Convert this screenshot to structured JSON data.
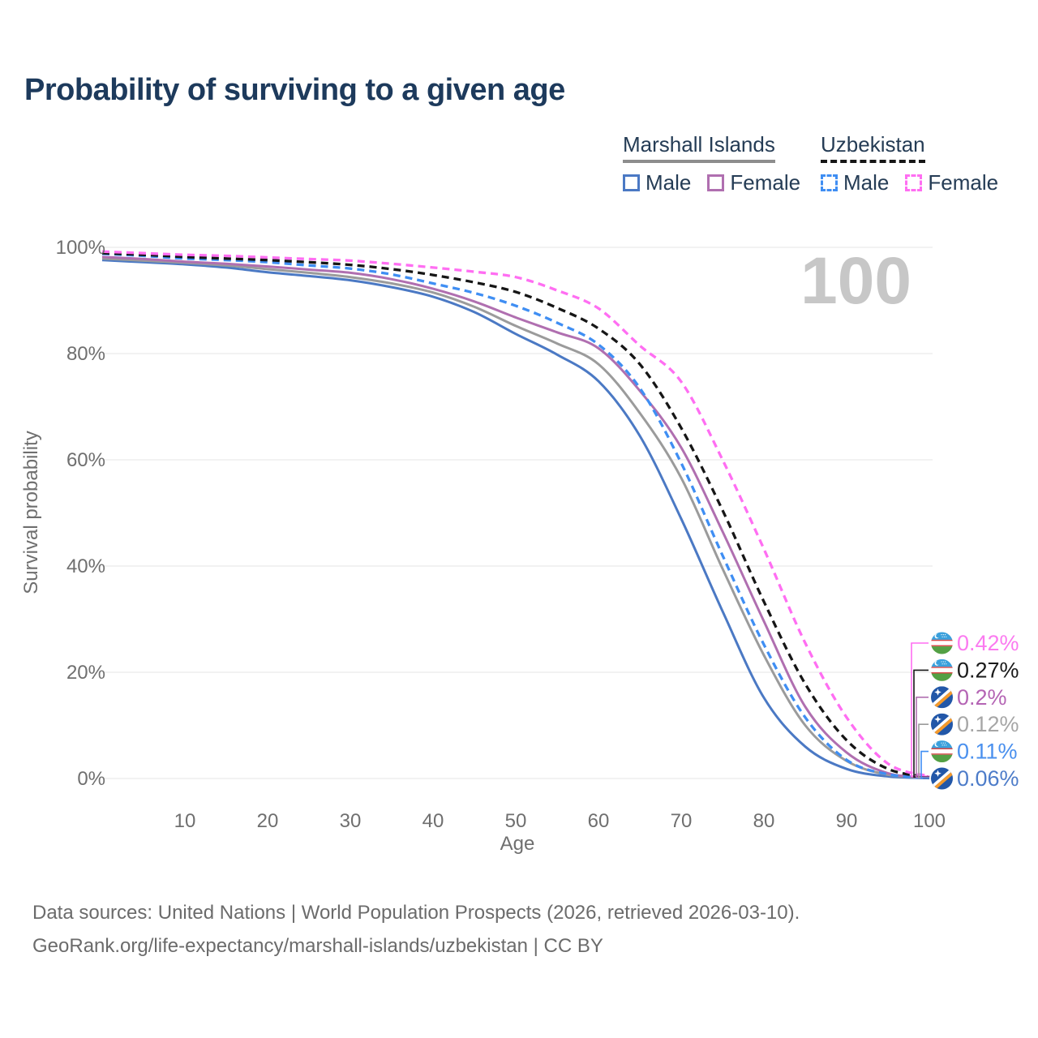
{
  "title": "Probability of surviving to a given age",
  "watermark_age": "100",
  "legend": {
    "groups": [
      {
        "name": "Marshall Islands",
        "line_style": "solid",
        "underline_color": "#8d8d8d",
        "items": [
          {
            "label": "Male",
            "color": "#4b79c4"
          },
          {
            "label": "Female",
            "color": "#b06fb0"
          }
        ]
      },
      {
        "name": "Uzbekistan",
        "line_style": "dashed",
        "underline_color": "#161616",
        "items": [
          {
            "label": "Male",
            "color": "#3f8ef3"
          },
          {
            "label": "Female",
            "color": "#ff6ef2"
          }
        ]
      }
    ]
  },
  "chart_data": {
    "type": "line",
    "title": "Probability of surviving to a given age",
    "xlabel": "Age",
    "ylabel": "Survival probability",
    "xlim": [
      0,
      100
    ],
    "ylim": [
      0,
      100
    ],
    "grid": "horizontal",
    "x_ticks": [
      10,
      20,
      30,
      40,
      50,
      60,
      70,
      80,
      90,
      100
    ],
    "y_ticks": [
      {
        "value": 0,
        "label": "0%"
      },
      {
        "value": 20,
        "label": "20%"
      },
      {
        "value": 40,
        "label": "40%"
      },
      {
        "value": 60,
        "label": "60%"
      },
      {
        "value": 80,
        "label": "80%"
      },
      {
        "value": 100,
        "label": "100%"
      }
    ],
    "ages": [
      0,
      5,
      10,
      15,
      20,
      25,
      30,
      35,
      40,
      45,
      50,
      55,
      60,
      65,
      70,
      75,
      80,
      85,
      90,
      95,
      100
    ],
    "series": [
      {
        "country": "Marshall Islands",
        "sex": "Male",
        "flag": "mh",
        "color": "#4b79c4",
        "dash": false,
        "end_label": "0.06%",
        "end_label_color": "#4d7cc9",
        "values_pct": [
          97.6,
          97.2,
          96.8,
          96.2,
          95.3,
          94.6,
          93.8,
          92.5,
          90.7,
          87.8,
          83.7,
          79.8,
          74.8,
          64.5,
          48.9,
          31.5,
          15.2,
          6.0,
          1.8,
          0.4,
          0.06
        ]
      },
      {
        "country": "Marshall Islands",
        "sex": "Both sexes",
        "flag": "mh",
        "color": "#9b9b9b",
        "dash": false,
        "end_label": "0.12%",
        "end_label_color": "#a6a6a6",
        "values_pct": [
          97.9,
          97.5,
          97.1,
          96.6,
          95.9,
          95.2,
          94.4,
          93.2,
          91.5,
          88.8,
          85.2,
          81.9,
          78.0,
          68.8,
          56.6,
          39.5,
          23.2,
          10.0,
          3.3,
          0.7,
          0.12
        ]
      },
      {
        "country": "Marshall Islands",
        "sex": "Female",
        "flag": "mh",
        "color": "#b06fb0",
        "dash": false,
        "end_label": "0.2%",
        "end_label_color": "#b464b4",
        "values_pct": [
          98.2,
          97.8,
          97.3,
          96.9,
          96.4,
          95.8,
          95.2,
          94.0,
          92.2,
          89.8,
          86.8,
          84.0,
          81.0,
          73.0,
          62.3,
          46.5,
          29.6,
          13.5,
          4.9,
          1.0,
          0.2
        ]
      },
      {
        "country": "Uzbekistan",
        "sex": "Male",
        "flag": "uz",
        "color": "#3f8ef3",
        "dash": true,
        "end_label": "0.11%",
        "end_label_color": "#4a90ee",
        "values_pct": [
          98.8,
          98.4,
          97.9,
          97.6,
          97.2,
          96.6,
          96.0,
          94.9,
          93.2,
          91.4,
          89.0,
          85.8,
          81.7,
          73.5,
          59.4,
          42.0,
          25.2,
          11.5,
          3.5,
          0.8,
          0.11
        ]
      },
      {
        "country": "Uzbekistan",
        "sex": "Both sexes",
        "flag": "uz",
        "color": "#161616",
        "dash": true,
        "end_label": "0.27%",
        "end_label_color": "#1a1a1a",
        "values_pct": [
          98.9,
          98.6,
          98.2,
          97.9,
          97.6,
          97.2,
          96.7,
          95.9,
          94.8,
          93.4,
          91.6,
          88.6,
          84.7,
          78.0,
          66.0,
          50.5,
          33.3,
          17.8,
          7.2,
          1.8,
          0.27
        ]
      },
      {
        "country": "Uzbekistan",
        "sex": "Female",
        "flag": "uz",
        "color": "#ff6ef2",
        "dash": true,
        "end_label": "0.42%",
        "end_label_color": "#fb7af0",
        "values_pct": [
          99.2,
          98.9,
          98.6,
          98.4,
          98.1,
          97.8,
          97.5,
          96.9,
          96.2,
          95.4,
          94.4,
          91.9,
          88.5,
          81.5,
          74.7,
          60.0,
          43.2,
          25.5,
          11.5,
          2.8,
          0.42
        ]
      }
    ]
  },
  "footer": {
    "line1": "Data sources: United Nations | World Population Prospects (2026, retrieved 2026-03-10).",
    "line2": "GeoRank.org/life-expectancy/marshall-islands/uzbekistan | CC BY"
  }
}
